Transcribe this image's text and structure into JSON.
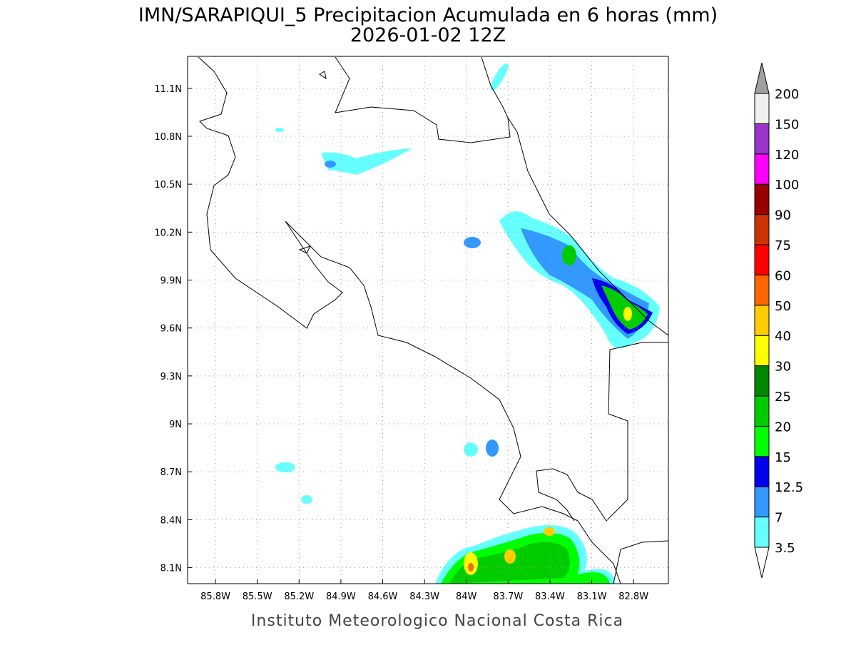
{
  "map": {
    "title": "IMN/SARAPIQUI_5 Precipitacion Acumulada en 6 horas (mm)",
    "subtitle": "2026-01-02 12Z",
    "footer": "Instituto Meteorologico Nacional Costa Rica",
    "lonlim": [
      -86.0,
      -82.55
    ],
    "latlim": [
      8.0,
      11.3
    ],
    "lon_ticks": [
      {
        "value": -85.8,
        "label": "85.8W"
      },
      {
        "value": -85.5,
        "label": "85.5W"
      },
      {
        "value": -85.2,
        "label": "85.2W"
      },
      {
        "value": -84.9,
        "label": "84.9W"
      },
      {
        "value": -84.6,
        "label": "84.6W"
      },
      {
        "value": -84.3,
        "label": "84.3W"
      },
      {
        "value": -84.0,
        "label": "84W"
      },
      {
        "value": -83.7,
        "label": "83.7W"
      },
      {
        "value": -83.4,
        "label": "83.4W"
      },
      {
        "value": -83.1,
        "label": "83.1W"
      },
      {
        "value": -82.8,
        "label": "82.8W"
      }
    ],
    "lat_ticks": [
      {
        "value": 11.1,
        "label": "11.1N"
      },
      {
        "value": 10.8,
        "label": "10.8N"
      },
      {
        "value": 10.5,
        "label": "10.5N"
      },
      {
        "value": 10.2,
        "label": "10.2N"
      },
      {
        "value": 9.9,
        "label": "9.9N"
      },
      {
        "value": 9.6,
        "label": "9.6N"
      },
      {
        "value": 9.3,
        "label": "9.3N"
      },
      {
        "value": 9.0,
        "label": "9N"
      },
      {
        "value": 8.7,
        "label": "8.7N"
      },
      {
        "value": 8.4,
        "label": "8.4N"
      },
      {
        "value": 8.1,
        "label": "8.1N"
      }
    ],
    "colorbar": {
      "levels": [
        3.5,
        7,
        12.5,
        15,
        20,
        25,
        30,
        40,
        50,
        60,
        75,
        90,
        100,
        120,
        150,
        200
      ],
      "colors": [
        "#66ffff",
        "#3399ff",
        "#0000ee",
        "#00ff00",
        "#00cc00",
        "#008800",
        "#ffff00",
        "#ffcc00",
        "#ff6600",
        "#ff0000",
        "#cc3300",
        "#990000",
        "#ff00ff",
        "#9933cc",
        "#f0f0f0"
      ],
      "under_color": "#ffffff",
      "over_color": "#a0a0a0"
    }
  }
}
